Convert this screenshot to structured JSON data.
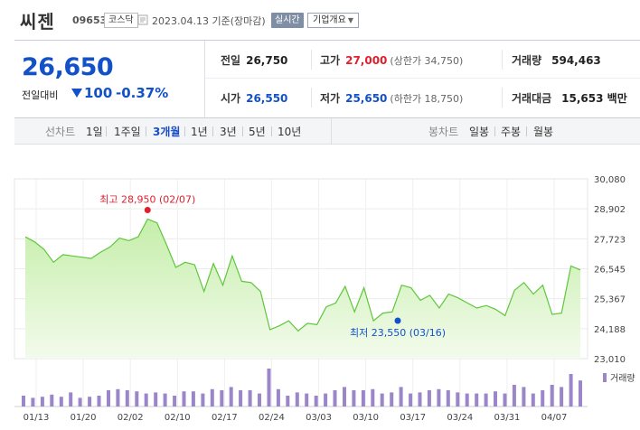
{
  "header": {
    "name": "씨젠",
    "code": "096530",
    "market": "코스닥",
    "as_of": "2023.04.13 기준(장마감)",
    "realtime_label": "실시간",
    "company_info_label": "기업개요"
  },
  "summary": {
    "price": "26,650",
    "change_label": "전일대비",
    "change": "100",
    "change_pct": "-0.37%",
    "prev_label": "전일",
    "prev": "26,750",
    "high_label": "고가",
    "high": "27,000",
    "upper_limit": "(상한가 34,750)",
    "volume_label": "거래량",
    "volume": "594,463",
    "open_label": "시가",
    "open": "26,550",
    "low_label": "저가",
    "low": "25,650",
    "lower_limit": "(하한가 18,750)",
    "amount_label": "거래대금",
    "amount": "15,653 백만"
  },
  "period_bar": {
    "line_label": "선차트",
    "periods": [
      "1일",
      "1주일",
      "3개월",
      "1년",
      "3년",
      "5년",
      "10년"
    ],
    "active": "3개월",
    "candle_label": "봉차트",
    "candles": [
      "일봉",
      "주봉",
      "월봉"
    ]
  },
  "colors": {
    "up": "#e0202d",
    "down": "#1251c8",
    "line": "#5fc63c",
    "volume": "#9b86c9"
  },
  "chart_data": {
    "type": "area",
    "yticks": [
      "30,080",
      "28,902",
      "27,723",
      "26,545",
      "25,367",
      "24,188",
      "23,010"
    ],
    "ylim": [
      23010,
      30080
    ],
    "xticks": [
      "01/13",
      "01/20",
      "02/02",
      "02/10",
      "02/17",
      "02/24",
      "03/03",
      "03/10",
      "03/17",
      "03/24",
      "03/31",
      "04/07"
    ],
    "price_series": [
      27800,
      27600,
      27300,
      26800,
      27100,
      27050,
      27000,
      26950,
      27200,
      27400,
      27750,
      27650,
      27800,
      28500,
      28350,
      27500,
      26600,
      26800,
      26700,
      25650,
      26750,
      25900,
      27050,
      26050,
      26000,
      25650,
      24150,
      24300,
      24500,
      24100,
      24400,
      24350,
      25050,
      25200,
      25850,
      24850,
      25800,
      24500,
      24800,
      24850,
      25900,
      25800,
      25300,
      25500,
      25000,
      25550,
      25400,
      25200,
      25000,
      25100,
      24950,
      24700,
      25700,
      26000,
      25550,
      25900,
      24750,
      24800,
      26650,
      26500
    ],
    "volume_series": [
      10,
      8,
      9,
      11,
      9,
      13,
      8,
      9,
      10,
      15,
      16,
      15,
      14,
      12,
      13,
      12,
      10,
      14,
      14,
      12,
      16,
      15,
      18,
      15,
      15,
      12,
      35,
      16,
      10,
      13,
      12,
      10,
      12,
      15,
      18,
      15,
      15,
      16,
      12,
      13,
      18,
      12,
      13,
      15,
      16,
      15,
      13,
      12,
      12,
      12,
      14,
      12,
      20,
      18,
      12,
      15,
      20,
      18,
      30,
      24
    ],
    "max_label": "최고 28,950 (02/07)",
    "min_label": "최저 23,550 (03/16)",
    "volume_label": "거래량"
  }
}
